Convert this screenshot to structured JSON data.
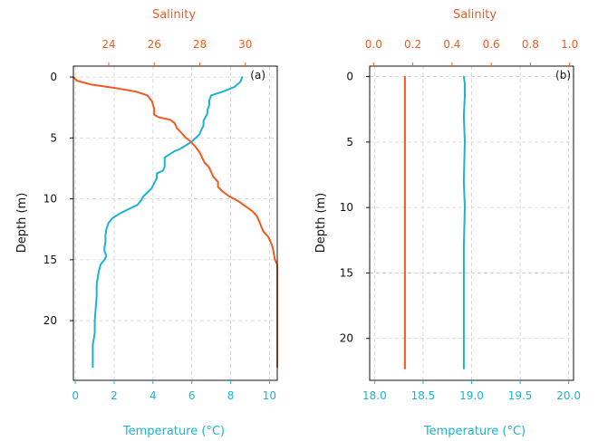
{
  "colors": {
    "temperature": "#1ab3d6",
    "salinity": "#f05a1e",
    "grid": "#d0d0d0",
    "frame": "#111111",
    "text": "#111111"
  },
  "chart_data": [
    {
      "type": "line",
      "panel_label": "(a)",
      "ylabel": "Depth (m)",
      "bottom_xlabel": "Temperature (°C)",
      "top_xlabel": "Salinity",
      "bottom_xlim": [
        -0.1,
        10.4
      ],
      "top_xlim": [
        22.45,
        31.4
      ],
      "ylim": [
        24.9,
        -0.9
      ],
      "bottom_ticks": [
        "0",
        "2",
        "4",
        "6",
        "8",
        "10"
      ],
      "bottom_tick_values": [
        0,
        2,
        4,
        6,
        8,
        10
      ],
      "top_ticks": [
        "24",
        "26",
        "28",
        "30"
      ],
      "top_tick_values": [
        24,
        26,
        28,
        30
      ],
      "y_ticks": [
        "0",
        "5",
        "10",
        "15",
        "20"
      ],
      "y_tick_values": [
        0,
        5,
        10,
        15,
        20
      ],
      "grid": true,
      "series": [
        {
          "key": "temperature",
          "axis": "bottom",
          "points": [
            [
              8.6,
              0.0
            ],
            [
              8.5,
              0.4
            ],
            [
              8.2,
              0.8
            ],
            [
              7.6,
              1.2
            ],
            [
              7.0,
              1.5
            ],
            [
              6.9,
              1.9
            ],
            [
              6.9,
              2.3
            ],
            [
              6.8,
              2.7
            ],
            [
              6.8,
              3.0
            ],
            [
              6.7,
              3.3
            ],
            [
              6.6,
              3.6
            ],
            [
              6.6,
              4.0
            ],
            [
              6.5,
              4.3
            ],
            [
              6.4,
              4.7
            ],
            [
              6.2,
              5.0
            ],
            [
              6.0,
              5.3
            ],
            [
              5.7,
              5.6
            ],
            [
              5.4,
              5.9
            ],
            [
              5.1,
              6.1
            ],
            [
              4.9,
              6.3
            ],
            [
              4.6,
              6.6
            ],
            [
              4.6,
              7.0
            ],
            [
              4.6,
              7.4
            ],
            [
              4.5,
              7.7
            ],
            [
              4.2,
              7.9
            ],
            [
              4.2,
              8.3
            ],
            [
              4.1,
              8.6
            ],
            [
              4.0,
              8.9
            ],
            [
              3.9,
              9.2
            ],
            [
              3.7,
              9.5
            ],
            [
              3.5,
              9.8
            ],
            [
              3.4,
              10.1
            ],
            [
              3.2,
              10.5
            ],
            [
              2.8,
              10.8
            ],
            [
              2.3,
              11.2
            ],
            [
              1.9,
              11.6
            ],
            [
              1.7,
              12.0
            ],
            [
              1.6,
              12.5
            ],
            [
              1.55,
              13.0
            ],
            [
              1.55,
              13.5
            ],
            [
              1.5,
              14.0
            ],
            [
              1.5,
              14.3
            ],
            [
              1.6,
              14.7
            ],
            [
              1.5,
              15.0
            ],
            [
              1.3,
              15.4
            ],
            [
              1.2,
              16.0
            ],
            [
              1.1,
              17.0
            ],
            [
              1.1,
              18.0
            ],
            [
              1.05,
              19.0
            ],
            [
              1.0,
              20.0
            ],
            [
              1.0,
              21.0
            ],
            [
              0.9,
              22.0
            ],
            [
              0.9,
              23.0
            ],
            [
              0.9,
              23.8
            ]
          ]
        },
        {
          "key": "salinity",
          "axis": "top",
          "points": [
            [
              22.45,
              0.0
            ],
            [
              22.6,
              0.3
            ],
            [
              23.2,
              0.6
            ],
            [
              24.3,
              0.9
            ],
            [
              25.2,
              1.2
            ],
            [
              25.7,
              1.5
            ],
            [
              25.9,
              2.0
            ],
            [
              26.0,
              2.6
            ],
            [
              26.0,
              3.1
            ],
            [
              26.2,
              3.3
            ],
            [
              26.7,
              3.5
            ],
            [
              26.9,
              3.8
            ],
            [
              27.0,
              4.2
            ],
            [
              27.2,
              4.6
            ],
            [
              27.4,
              5.0
            ],
            [
              27.6,
              5.3
            ],
            [
              27.8,
              5.7
            ],
            [
              28.0,
              6.2
            ],
            [
              28.1,
              6.6
            ],
            [
              28.2,
              7.0
            ],
            [
              28.4,
              7.4
            ],
            [
              28.5,
              7.8
            ],
            [
              28.6,
              8.2
            ],
            [
              28.8,
              8.6
            ],
            [
              28.8,
              9.0
            ],
            [
              29.0,
              9.4
            ],
            [
              29.3,
              9.8
            ],
            [
              29.7,
              10.2
            ],
            [
              30.0,
              10.6
            ],
            [
              30.3,
              11.0
            ],
            [
              30.5,
              11.4
            ],
            [
              30.6,
              11.8
            ],
            [
              30.7,
              12.3
            ],
            [
              30.8,
              12.7
            ],
            [
              31.0,
              13.1
            ],
            [
              31.1,
              13.5
            ],
            [
              31.2,
              14.0
            ],
            [
              31.25,
              14.5
            ],
            [
              31.3,
              15.0
            ],
            [
              31.4,
              15.4
            ],
            [
              31.4,
              16.0
            ],
            [
              31.4,
              17.0
            ],
            [
              31.4,
              18.0
            ],
            [
              31.4,
              19.0
            ],
            [
              31.4,
              20.0
            ],
            [
              31.4,
              21.0
            ],
            [
              31.4,
              22.0
            ],
            [
              31.4,
              23.0
            ],
            [
              31.4,
              23.8
            ]
          ]
        }
      ]
    },
    {
      "type": "line",
      "panel_label": "(b)",
      "ylabel": "Depth (m)",
      "bottom_xlabel": "Temperature (°C)",
      "top_xlabel": "Salinity",
      "bottom_xlim": [
        17.95,
        20.05
      ],
      "top_xlim": [
        -0.02,
        1.02
      ],
      "ylim": [
        23.2,
        -0.8
      ],
      "bottom_ticks": [
        "18.0",
        "18.5",
        "19.0",
        "19.5",
        "20.0"
      ],
      "bottom_tick_values": [
        18.0,
        18.5,
        19.0,
        19.5,
        20.0
      ],
      "top_ticks": [
        "0.0",
        "0.2",
        "0.4",
        "0.6",
        "0.8",
        "1.0"
      ],
      "top_tick_values": [
        0.0,
        0.2,
        0.4,
        0.6,
        0.8,
        1.0
      ],
      "y_ticks": [
        "0",
        "5",
        "10",
        "15",
        "20"
      ],
      "y_tick_values": [
        0,
        5,
        10,
        15,
        20
      ],
      "grid": true,
      "series": [
        {
          "key": "temperature",
          "axis": "bottom",
          "points": [
            [
              18.92,
              0.0
            ],
            [
              18.93,
              0.5
            ],
            [
              18.93,
              1.5
            ],
            [
              18.92,
              3.0
            ],
            [
              18.93,
              5.0
            ],
            [
              18.92,
              8.0
            ],
            [
              18.93,
              10.0
            ],
            [
              18.92,
              13.0
            ],
            [
              18.92,
              16.0
            ],
            [
              18.92,
              20.0
            ],
            [
              18.92,
              22.3
            ]
          ]
        },
        {
          "key": "salinity",
          "axis": "top",
          "points": [
            [
              0.16,
              0.0
            ],
            [
              0.16,
              22.3
            ]
          ]
        }
      ]
    }
  ]
}
